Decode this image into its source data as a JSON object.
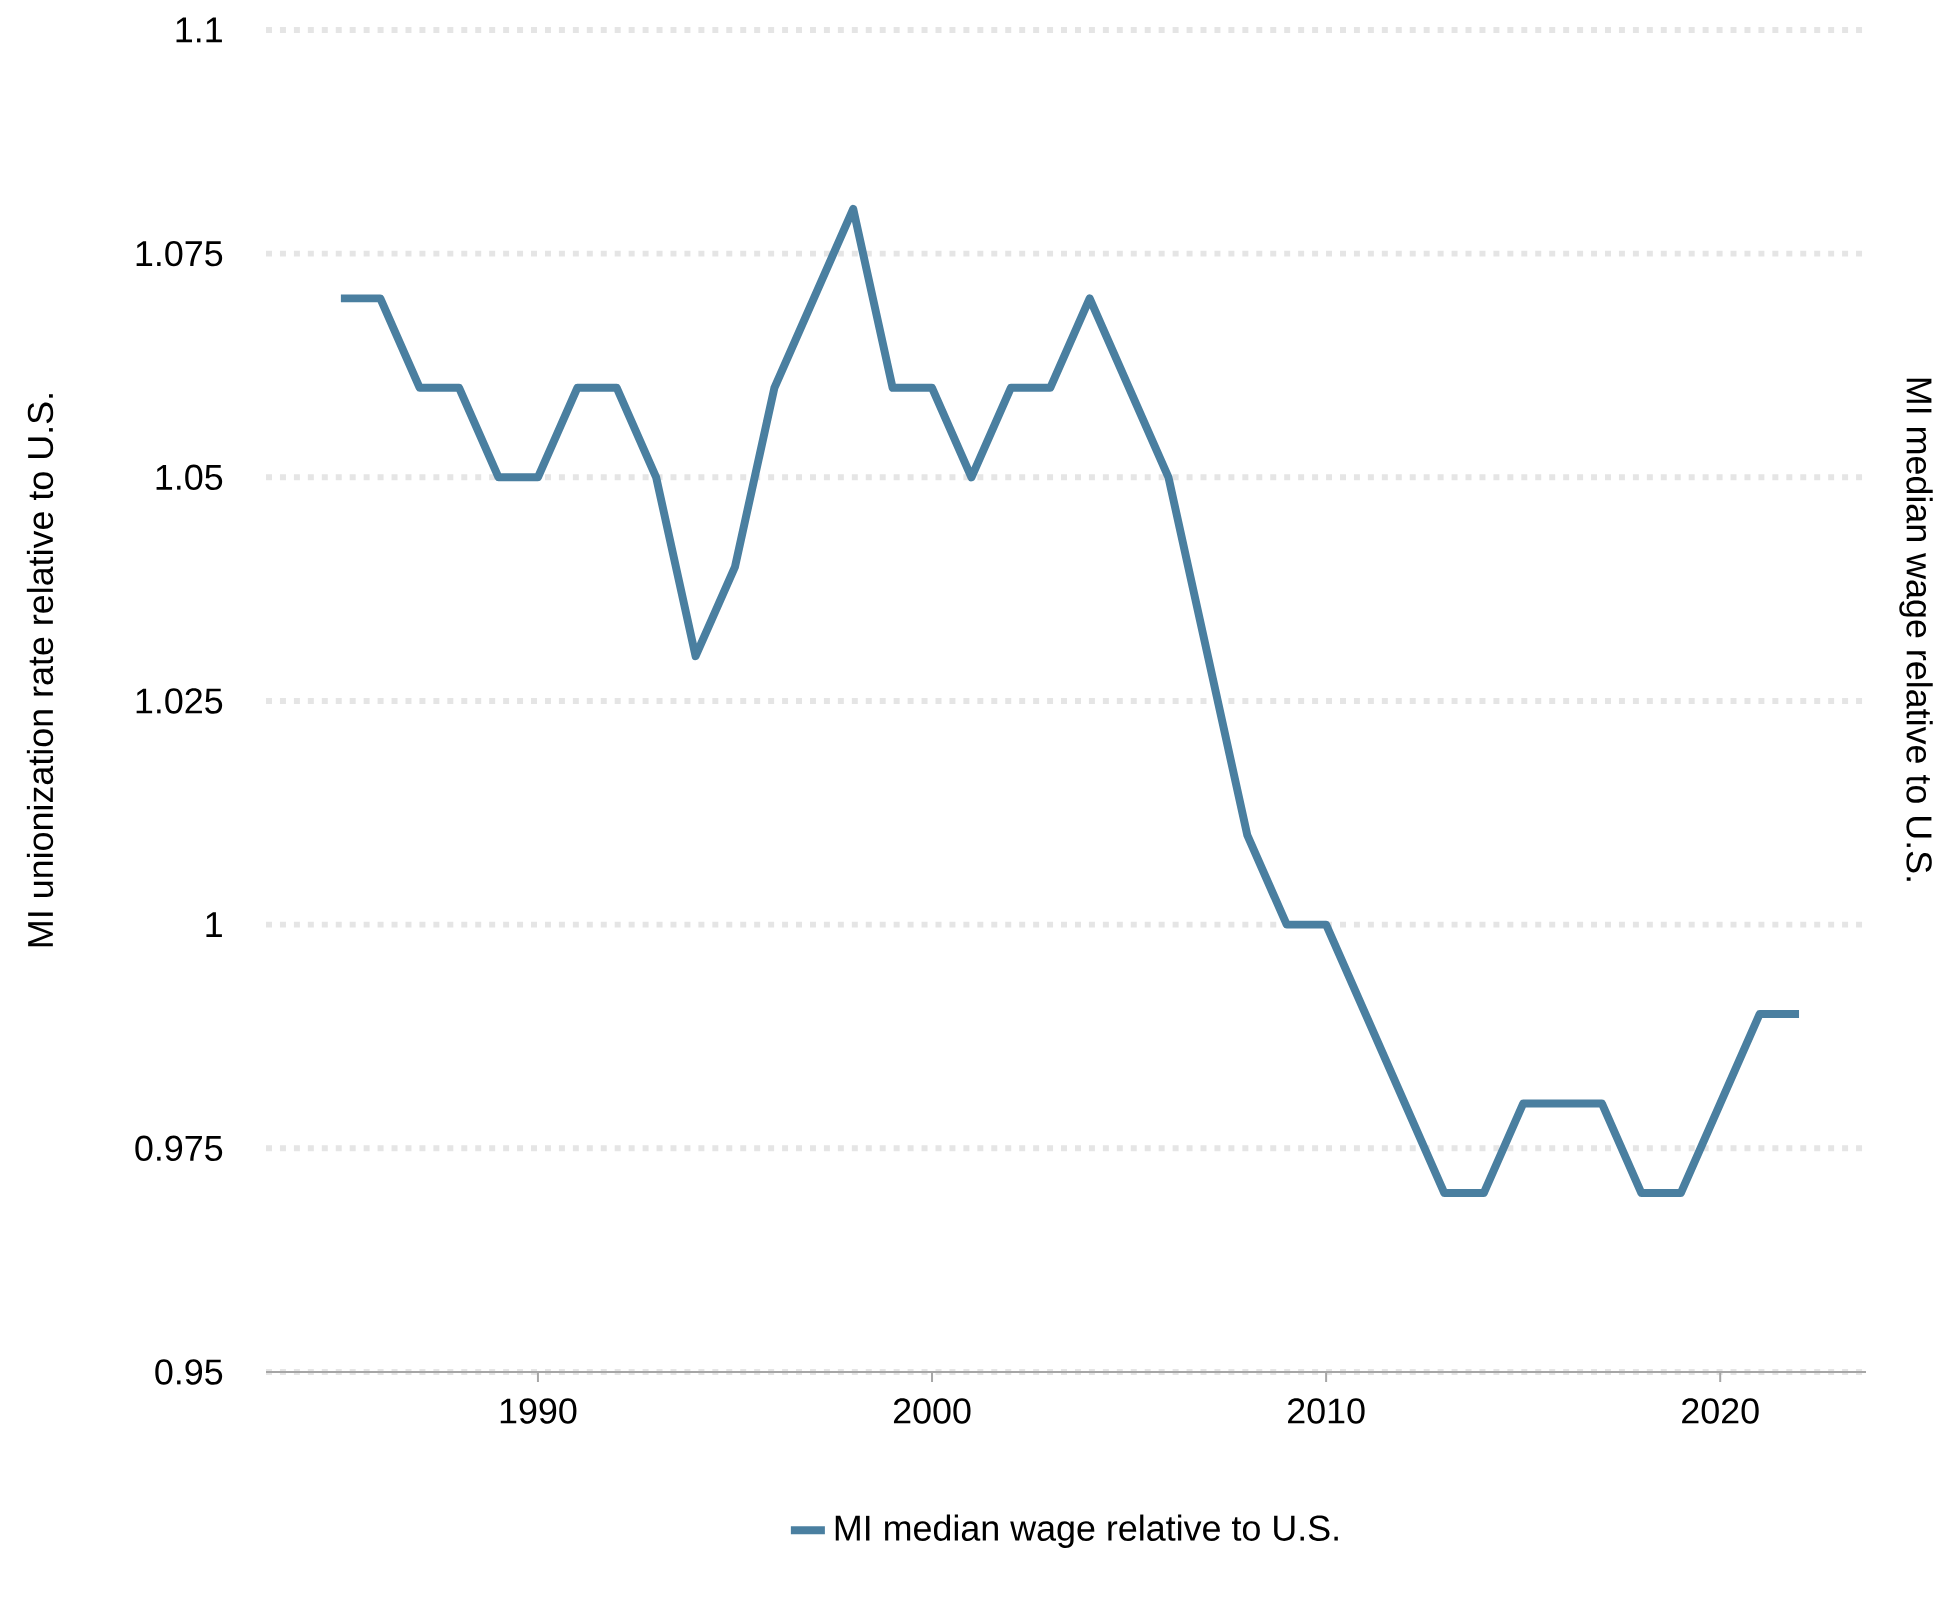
{
  "chart_data": {
    "type": "line",
    "ylabel": "MI unionization rate relative to U.S.",
    "y2label": "MI median wage relative to U.S.",
    "x": [
      1985,
      1986,
      1987,
      1988,
      1989,
      1990,
      1991,
      1992,
      1993,
      1994,
      1995,
      1996,
      1997,
      1998,
      1999,
      2000,
      2001,
      2002,
      2003,
      2004,
      2005,
      2006,
      2007,
      2008,
      2009,
      2010,
      2011,
      2012,
      2013,
      2014,
      2015,
      2016,
      2017,
      2018,
      2019,
      2020,
      2021,
      2022
    ],
    "series": [
      {
        "name": "MI median wage relative to U.S.",
        "color": "#4a7fa0",
        "values": [
          1.07,
          1.07,
          1.06,
          1.06,
          1.05,
          1.05,
          1.06,
          1.06,
          1.05,
          1.03,
          1.04,
          1.06,
          1.07,
          1.08,
          1.06,
          1.06,
          1.05,
          1.06,
          1.06,
          1.07,
          1.06,
          1.05,
          1.03,
          1.01,
          1.0,
          1.0,
          0.99,
          0.98,
          0.97,
          0.97,
          0.98,
          0.98,
          0.98,
          0.97,
          0.97,
          0.98,
          0.99,
          0.99
        ]
      }
    ],
    "xlim": [
      1983.1,
      2023.7
    ],
    "ylim": [
      0.95,
      1.1
    ],
    "xticks": [
      1990,
      2000,
      2010,
      2020
    ],
    "yticks": [
      0.95,
      0.975,
      1,
      1.025,
      1.05,
      1.075,
      1.1
    ],
    "grid": "y",
    "legend": "bottom"
  }
}
